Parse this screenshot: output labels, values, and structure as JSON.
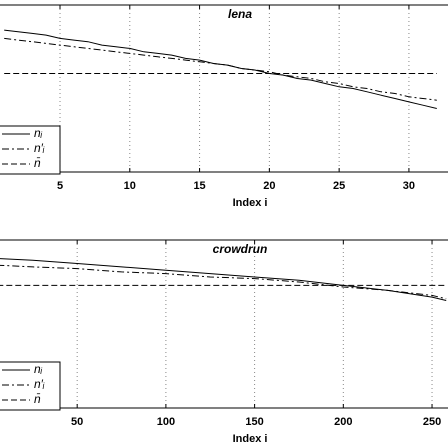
{
  "chart_data": [
    {
      "type": "line",
      "title": "lena",
      "x_label": "Index i",
      "x": [
        1,
        2,
        3,
        4,
        5,
        6,
        7,
        8,
        9,
        10,
        11,
        12,
        13,
        14,
        15,
        16,
        17,
        18,
        19,
        20,
        21,
        22,
        23,
        24,
        25,
        26,
        27,
        28,
        29,
        30,
        31,
        32
      ],
      "xlim": [
        0.7,
        32.8
      ],
      "xticks": [
        5,
        10,
        15,
        20,
        25,
        30
      ],
      "ylim": [
        0,
        100
      ],
      "grid": true,
      "series": [
        {
          "name": "nᵢ",
          "color": "#000000",
          "dash": "solid",
          "values": [
            85,
            84,
            83,
            82,
            80,
            79,
            78,
            76,
            75,
            74,
            72,
            71,
            70,
            68,
            67,
            65,
            64,
            62,
            61,
            59,
            58,
            56,
            55,
            53,
            51,
            50,
            48,
            46,
            44,
            42,
            40,
            38
          ]
        },
        {
          "name": "n′ᵢ",
          "color": "#000000",
          "dash": "dashdot",
          "values": [
            80,
            79,
            78,
            77,
            76,
            75,
            74,
            73,
            72,
            71,
            70,
            69,
            68,
            67,
            66,
            65,
            64,
            62,
            61,
            60,
            58,
            57,
            56,
            54,
            53,
            51,
            50,
            48,
            47,
            45,
            44,
            43
          ]
        },
        {
          "name": "n̄",
          "color": "#000000",
          "dash": "dashed",
          "values": [
            59,
            59,
            59,
            59,
            59,
            59,
            59,
            59,
            59,
            59,
            59,
            59,
            59,
            59,
            59,
            59,
            59,
            59,
            59,
            59,
            59,
            59,
            59,
            59,
            59,
            59,
            59,
            59,
            59,
            59,
            59,
            59
          ]
        }
      ]
    },
    {
      "type": "line",
      "title": "crowdrun",
      "x_label": "Index i",
      "x": [
        5,
        25,
        50,
        75,
        100,
        125,
        150,
        175,
        200,
        225,
        250,
        258
      ],
      "xlim": [
        6.5,
        259
      ],
      "xticks": [
        50,
        100,
        150,
        200,
        250
      ],
      "ylim": [
        0,
        100
      ],
      "grid": true,
      "series": [
        {
          "name": "nᵢ",
          "color": "#000000",
          "dash": "solid",
          "values": [
            89,
            88,
            86,
            84,
            82,
            80,
            78,
            76,
            73,
            70,
            66,
            64
          ]
        },
        {
          "name": "n′ᵢ",
          "color": "#000000",
          "dash": "dashdot",
          "values": [
            85,
            84,
            83,
            81,
            80,
            78,
            77,
            75,
            72,
            70,
            67,
            65
          ]
        },
        {
          "name": "n̄",
          "color": "#000000",
          "dash": "dashed",
          "values": [
            73,
            73,
            73,
            73,
            73,
            73,
            73,
            73,
            73,
            73,
            73,
            73
          ]
        }
      ]
    }
  ]
}
